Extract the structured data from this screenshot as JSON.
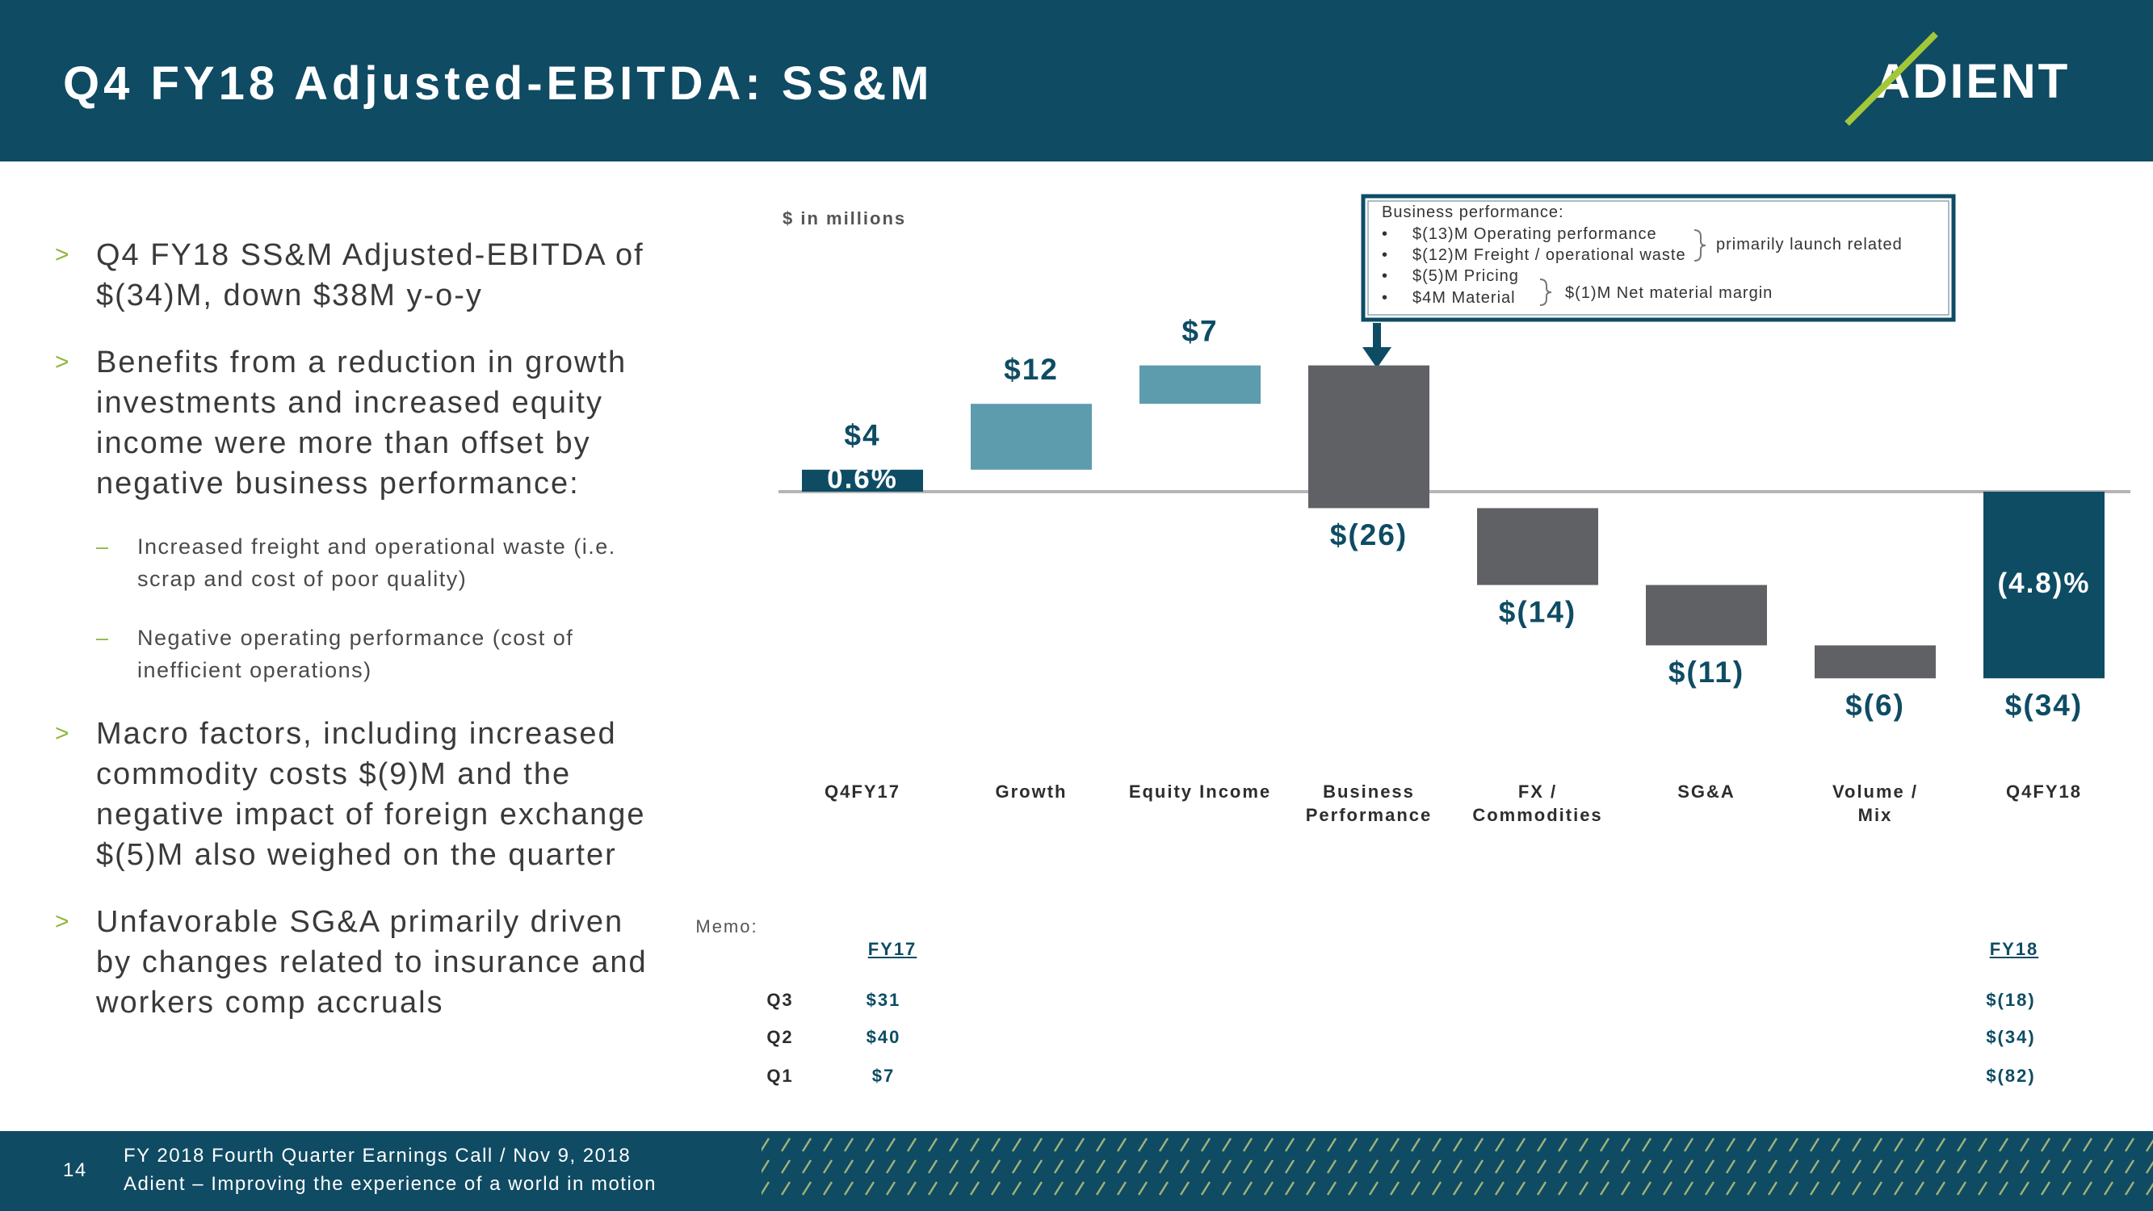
{
  "header": {
    "title": "Q4 FY18 Adjusted-EBITDA: SS&M",
    "logo": "ADIENT"
  },
  "bullets": [
    {
      "text": "Q4 FY18 SS&M Adjusted-EBITDA of $(34)M, down $38M y-o-y",
      "subs": []
    },
    {
      "text": "Benefits from a reduction in growth investments and increased equity income were more than offset by negative business performance:",
      "subs": [
        "Increased freight and operational waste (i.e. scrap and cost of poor quality)",
        "Negative operating performance (cost of inefficient operations)"
      ]
    },
    {
      "text": "Macro factors, including increased commodity costs $(9)M and the negative impact of foreign exchange $(5)M also weighed on the quarter",
      "subs": []
    },
    {
      "text": "Unfavorable SG&A primarily driven by changes related to insurance and workers comp accruals",
      "subs": []
    }
  ],
  "chart_data": {
    "type": "waterfall",
    "unit_label": "$ in millions",
    "categories": [
      "Q4FY17",
      "Growth",
      "Equity Income",
      "Business\nPerformance",
      "FX /\nCommodities",
      "SG&A",
      "Volume /\nMix",
      "Q4FY18"
    ],
    "values": [
      4,
      12,
      7,
      -26,
      -14,
      -11,
      -6,
      -34
    ],
    "value_labels": [
      "$4",
      "$12",
      "$7",
      "$(26)",
      "$(14)",
      "$(11)",
      "$(6)",
      "$(34)"
    ],
    "totals": [
      true,
      false,
      false,
      false,
      false,
      false,
      false,
      true
    ],
    "annotations": [
      "0.6%",
      "(4.8)%"
    ],
    "colors": {
      "total": "#0e4c64",
      "increase": "#5d9cad",
      "decrease": "#5f6165"
    },
    "ylim": [
      -50,
      50
    ]
  },
  "callout": {
    "title": "Business performance:",
    "items": [
      "$(13)M Operating performance",
      "$(12)M Freight / operational waste",
      "$(5)M Pricing",
      "$4M Material"
    ],
    "notes": [
      "primarily launch related",
      "$(1)M Net material margin"
    ]
  },
  "memo": {
    "label": "Memo:",
    "columns": [
      "FY17",
      "FY18"
    ],
    "rows": [
      [
        "Q3",
        "$31",
        "$(18)"
      ],
      [
        "Q2",
        "$40",
        "$(34)"
      ],
      [
        "Q1",
        "$7",
        "$(82)"
      ]
    ]
  },
  "footer": {
    "page": "14",
    "lines": [
      "FY 2018 Fourth Quarter Earnings Call / Nov 9, 2018",
      "Adient – Improving the experience of a world in motion"
    ]
  }
}
